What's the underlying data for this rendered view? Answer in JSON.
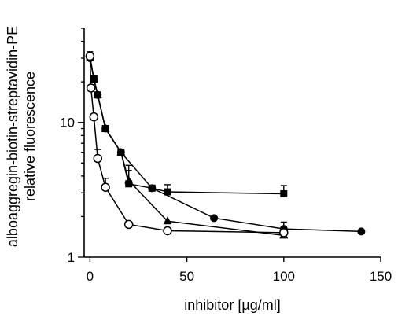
{
  "chart_data": {
    "type": "scatter",
    "xlabel": "inhibitor [µg/ml]",
    "ylabel_lines": [
      "alboaggregin-biotin-streptavidin-PE",
      "relative fluorescence"
    ],
    "xlim": [
      -3,
      150
    ],
    "ylim": [
      1,
      50
    ],
    "yscale": "log",
    "xticks": [
      0,
      50,
      100,
      150
    ],
    "xtick_labels": [
      "0",
      "50",
      "100",
      "150"
    ],
    "yticks": [
      1,
      10
    ],
    "ytick_labels": [
      "1",
      "10"
    ],
    "grid": false,
    "series": [
      {
        "marker": "square-filled",
        "points": [
          [
            0,
            31
          ],
          [
            2,
            21
          ],
          [
            4,
            16
          ],
          [
            8,
            9
          ],
          [
            16,
            6
          ],
          [
            20,
            3.5
          ],
          [
            32,
            3.25
          ],
          [
            40,
            3.05
          ],
          [
            100,
            2.95
          ]
        ],
        "err": [
          null,
          null,
          null,
          null,
          null,
          0.9,
          null,
          0.4,
          0.45
        ]
      },
      {
        "marker": "triangle-filled",
        "points": [
          [
            0,
            30
          ],
          [
            2,
            21
          ],
          [
            4,
            16
          ],
          [
            8,
            9
          ],
          [
            16,
            6
          ],
          [
            20,
            3.7
          ],
          [
            40,
            1.85
          ],
          [
            100,
            1.45
          ]
        ],
        "err": [
          null,
          null,
          null,
          null,
          null,
          1.1,
          null,
          null,
          null
        ]
      },
      {
        "marker": "circle-filled",
        "points": [
          [
            0,
            30
          ],
          [
            2,
            21
          ],
          [
            4,
            16
          ],
          [
            8,
            9
          ],
          [
            16,
            6
          ],
          [
            32,
            3.25
          ],
          [
            64,
            1.95
          ],
          [
            100,
            1.62
          ],
          [
            140,
            1.55
          ]
        ],
        "err": [
          null,
          null,
          null,
          null,
          null,
          null,
          null,
          0.2,
          null
        ]
      },
      {
        "marker": "circle-open",
        "points": [
          [
            0,
            31
          ],
          [
            0.5,
            18
          ],
          [
            2,
            11
          ],
          [
            4,
            5.4
          ],
          [
            8,
            3.3
          ],
          [
            20,
            1.75
          ],
          [
            40,
            1.57
          ],
          [
            100,
            1.52
          ]
        ],
        "err": [
          2.5,
          null,
          null,
          0.9,
          0.55,
          null,
          null,
          null
        ]
      }
    ]
  }
}
